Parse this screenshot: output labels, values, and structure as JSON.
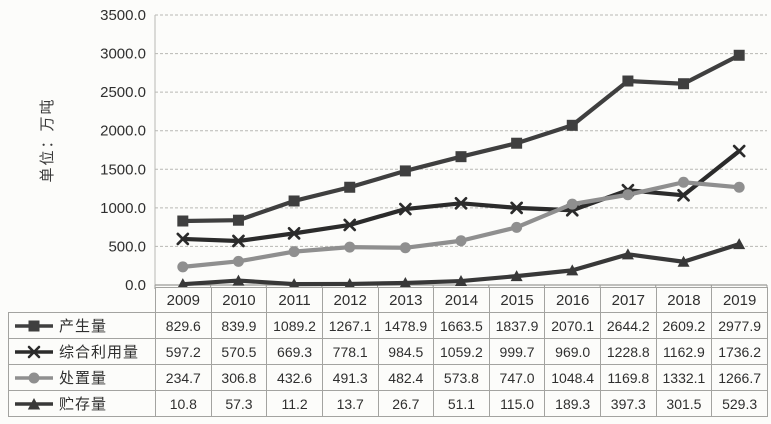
{
  "chart_data": {
    "type": "line",
    "title": "",
    "xlabel": "",
    "ylabel": "单位：万吨",
    "ylim": [
      0,
      3500
    ],
    "yticks": [
      0,
      500,
      1000,
      1500,
      2000,
      2500,
      3000,
      3500
    ],
    "ytick_labels": [
      "0.0",
      "500.0",
      "1000.0",
      "1500.0",
      "2000.0",
      "2500.0",
      "3000.0",
      "3500.0"
    ],
    "grid": true,
    "legend_position": "table-left-column",
    "categories": [
      "2009",
      "2010",
      "2011",
      "2012",
      "2013",
      "2014",
      "2015",
      "2016",
      "2017",
      "2018",
      "2019"
    ],
    "series": [
      {
        "name": "产生量",
        "marker": "square",
        "color": "#3f3f3f",
        "values": [
          829.6,
          839.9,
          1089.2,
          1267.1,
          1478.9,
          1663.5,
          1837.9,
          2070.1,
          2644.2,
          2609.2,
          2977.9
        ]
      },
      {
        "name": "综合利用量",
        "marker": "x",
        "color": "#2b2b2b",
        "values": [
          597.2,
          570.5,
          669.3,
          778.1,
          984.5,
          1059.2,
          999.7,
          969.0,
          1228.8,
          1162.9,
          1736.2
        ]
      },
      {
        "name": "处置量",
        "marker": "circle",
        "color": "#8f8f8f",
        "values": [
          234.7,
          306.8,
          432.6,
          491.3,
          482.4,
          573.8,
          747.0,
          1048.4,
          1169.8,
          1332.1,
          1266.7
        ]
      },
      {
        "name": "贮存量",
        "marker": "triangle",
        "color": "#383838",
        "values": [
          10.8,
          57.3,
          11.2,
          13.7,
          26.7,
          51.1,
          115.0,
          189.3,
          397.3,
          301.5,
          529.3
        ]
      }
    ],
    "value_decimals": 1
  },
  "theme": {
    "background": "#fcfcfa",
    "gridline_color": "#b8b8b4",
    "axis_color": "#9a9a96",
    "text_color": "#2f2f2f",
    "table_border_color": "#a3a3a0"
  }
}
